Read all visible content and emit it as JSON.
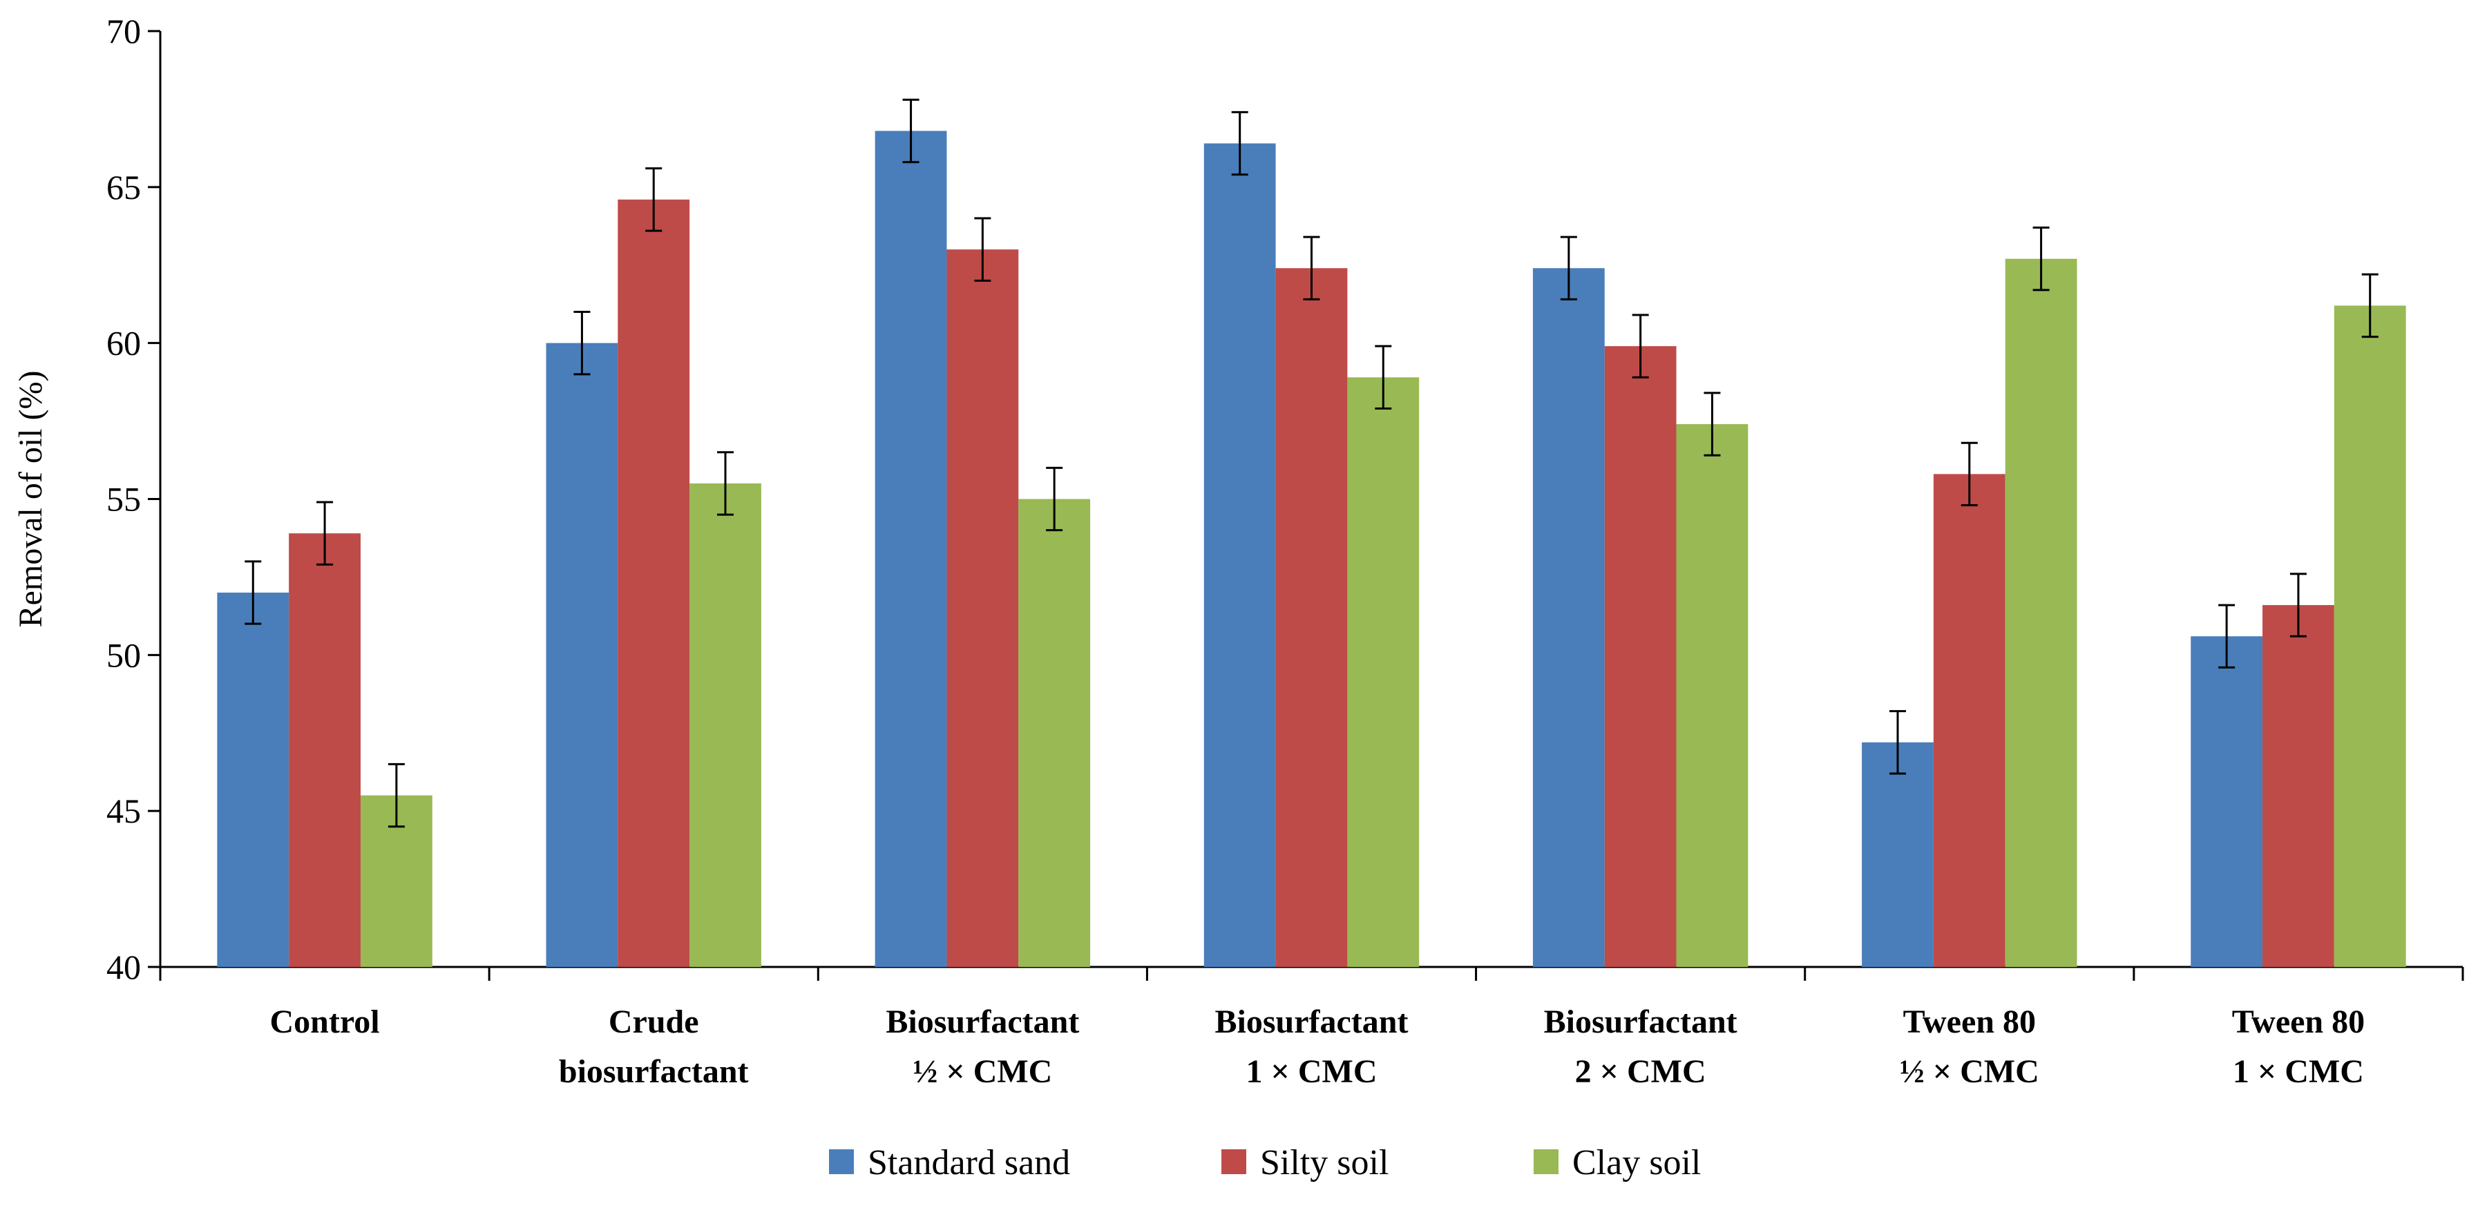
{
  "chart_data": {
    "type": "bar",
    "title": "",
    "xlabel": "",
    "ylabel": "Removal of oil (%)",
    "ylim": [
      40,
      70
    ],
    "yticks": [
      40,
      45,
      50,
      55,
      60,
      65,
      70
    ],
    "grid": false,
    "legend_position": "bottom",
    "categories": [
      [
        "Control"
      ],
      [
        "Crude",
        "biosurfactant"
      ],
      [
        "Biosurfactant",
        "½ × CMC"
      ],
      [
        "Biosurfactant",
        "1 × CMC"
      ],
      [
        "Biosurfactant",
        "2 × CMC"
      ],
      [
        "Tween 80",
        "½ × CMC"
      ],
      [
        "Tween 80",
        "1 × CMC"
      ]
    ],
    "series": [
      {
        "name": "Standard sand",
        "color": "#4a7ebb",
        "values": [
          52.0,
          60.0,
          66.8,
          66.4,
          62.4,
          47.2,
          50.6
        ],
        "errors": [
          1.0,
          1.0,
          1.0,
          1.0,
          1.0,
          1.0,
          1.0
        ]
      },
      {
        "name": "Silty soil",
        "color": "#be4b48",
        "values": [
          53.9,
          64.6,
          63.0,
          62.4,
          59.9,
          55.8,
          51.6
        ],
        "errors": [
          1.0,
          1.0,
          1.0,
          1.0,
          1.0,
          1.0,
          1.0
        ]
      },
      {
        "name": "Clay soil",
        "color": "#98b954",
        "values": [
          45.5,
          55.5,
          55.0,
          58.9,
          57.4,
          62.7,
          61.2
        ],
        "errors": [
          1.0,
          1.0,
          1.0,
          1.0,
          1.0,
          1.0,
          1.0
        ]
      }
    ]
  }
}
